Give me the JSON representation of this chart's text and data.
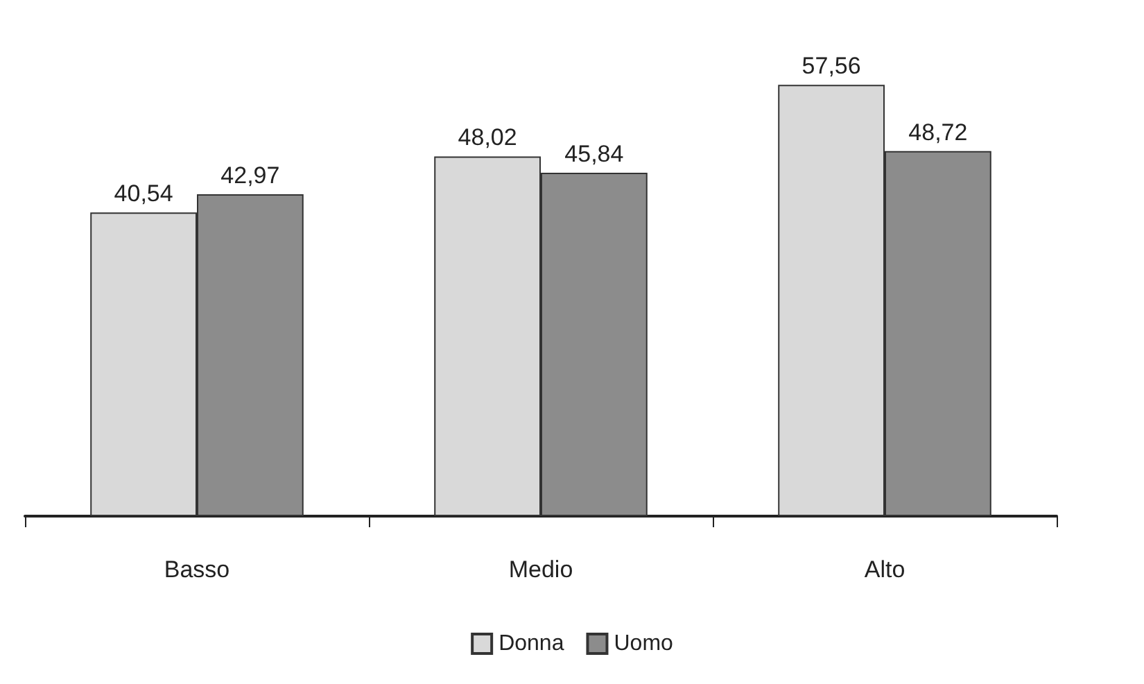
{
  "chart_data": {
    "type": "bar",
    "categories": [
      "Basso",
      "Medio",
      "Alto"
    ],
    "series": [
      {
        "name": "Donna",
        "color": "#d9d9d9",
        "values": [
          40.54,
          48.02,
          57.56
        ],
        "value_labels": [
          "40,54",
          "48,02",
          "57,56"
        ]
      },
      {
        "name": "Uomo",
        "color": "#8c8c8c",
        "values": [
          42.97,
          45.84,
          48.72
        ],
        "value_labels": [
          "42,97",
          "45,84",
          "48,72"
        ]
      }
    ],
    "legend": "bottom"
  }
}
